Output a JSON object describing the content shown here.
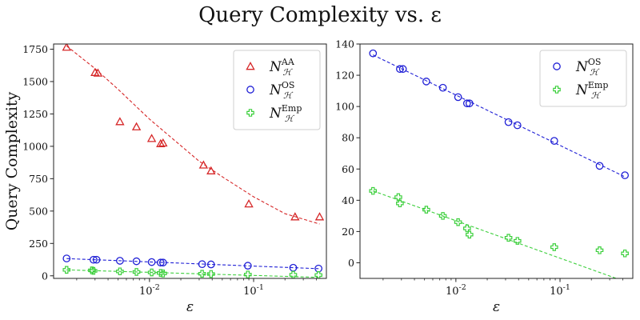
{
  "figure": {
    "title": "Query Complexity vs. ε"
  },
  "chart_data": [
    {
      "type": "scatter",
      "panel": "left",
      "xscale": "log",
      "xlabel": "ε",
      "ylabel": "Query Complexity",
      "xlim": [
        0.0012,
        0.5
      ],
      "ylim": [
        -20,
        1790
      ],
      "xticks": [
        {
          "value": 0.01,
          "label": "10^-2"
        },
        {
          "value": 0.1,
          "label": "10^-1"
        }
      ],
      "yticks": [
        0,
        250,
        500,
        750,
        1000,
        1250,
        1500,
        1750
      ],
      "legend_position": "top-right",
      "series": [
        {
          "name": "N_H^AA",
          "name_base": "N",
          "name_sub": "ℋ",
          "name_sup": "AA",
          "color": "#d62728",
          "marker": "triangle",
          "points": [
            [
              0.0016,
              1765
            ],
            [
              0.003,
              1570
            ],
            [
              0.0032,
              1565
            ],
            [
              0.0052,
              1190
            ],
            [
              0.0075,
              1150
            ],
            [
              0.0105,
              1060
            ],
            [
              0.0128,
              1020
            ],
            [
              0.0135,
              1025
            ],
            [
              0.033,
              855
            ],
            [
              0.039,
              810
            ],
            [
              0.09,
              555
            ],
            [
              0.25,
              455
            ],
            [
              0.43,
              455
            ]
          ],
          "fit": [
            [
              0.0016,
              1775
            ],
            [
              0.003,
              1600
            ],
            [
              0.005,
              1440
            ],
            [
              0.01,
              1210
            ],
            [
              0.03,
              885
            ],
            [
              0.05,
              765
            ],
            [
              0.1,
              610
            ],
            [
              0.2,
              480
            ],
            [
              0.43,
              400
            ]
          ]
        },
        {
          "name": "N_H^OS",
          "name_base": "N",
          "name_sub": "ℋ",
          "name_sup": "OS",
          "color": "#1f1fd6",
          "marker": "circle",
          "points": [
            [
              0.0016,
              134
            ],
            [
              0.0029,
              124
            ],
            [
              0.0031,
              124
            ],
            [
              0.0052,
              116
            ],
            [
              0.0075,
              112
            ],
            [
              0.0105,
              106
            ],
            [
              0.0128,
              102
            ],
            [
              0.0135,
              102
            ],
            [
              0.032,
              90
            ],
            [
              0.039,
              88
            ],
            [
              0.088,
              78
            ],
            [
              0.24,
              62
            ],
            [
              0.42,
              56
            ]
          ],
          "fit": [
            [
              0.0016,
              133
            ],
            [
              0.42,
              55
            ]
          ]
        },
        {
          "name": "N_H^Emp",
          "name_base": "N",
          "name_sub": "ℋ",
          "name_sup": "Emp",
          "color": "#3ccf3c",
          "marker": "plus",
          "points": [
            [
              0.0016,
              46
            ],
            [
              0.0028,
              42
            ],
            [
              0.0029,
              38
            ],
            [
              0.0052,
              34
            ],
            [
              0.0075,
              30
            ],
            [
              0.0105,
              26
            ],
            [
              0.0128,
              22
            ],
            [
              0.0135,
              18
            ],
            [
              0.032,
              16
            ],
            [
              0.039,
              14
            ],
            [
              0.088,
              10
            ],
            [
              0.24,
              8
            ],
            [
              0.42,
              6
            ]
          ],
          "fit": [
            [
              0.0016,
              46
            ],
            [
              0.42,
              -12
            ]
          ]
        }
      ]
    },
    {
      "type": "scatter",
      "panel": "right",
      "xscale": "log",
      "xlabel": "ε",
      "ylabel": "",
      "xlim": [
        0.0012,
        0.5
      ],
      "ylim": [
        -10,
        140
      ],
      "xticks": [
        {
          "value": 0.01,
          "label": "10^-2"
        },
        {
          "value": 0.1,
          "label": "10^-1"
        }
      ],
      "yticks": [
        0,
        20,
        40,
        60,
        80,
        100,
        120,
        140
      ],
      "legend_position": "top-right",
      "series": [
        {
          "name": "N_H^OS",
          "name_base": "N",
          "name_sub": "ℋ",
          "name_sup": "OS",
          "color": "#1f1fd6",
          "marker": "circle",
          "points": [
            [
              0.0016,
              134
            ],
            [
              0.0029,
              124
            ],
            [
              0.0031,
              124
            ],
            [
              0.0052,
              116
            ],
            [
              0.0075,
              112
            ],
            [
              0.0105,
              106
            ],
            [
              0.0128,
              102
            ],
            [
              0.0135,
              102
            ],
            [
              0.032,
              90
            ],
            [
              0.039,
              88
            ],
            [
              0.088,
              78
            ],
            [
              0.24,
              62
            ],
            [
              0.42,
              56
            ]
          ],
          "fit": [
            [
              0.0016,
              133
            ],
            [
              0.42,
              55
            ]
          ]
        },
        {
          "name": "N_H^Emp",
          "name_base": "N",
          "name_sub": "ℋ",
          "name_sup": "Emp",
          "color": "#3ccf3c",
          "marker": "plus",
          "points": [
            [
              0.0016,
              46
            ],
            [
              0.0028,
              42
            ],
            [
              0.0029,
              38
            ],
            [
              0.0052,
              34
            ],
            [
              0.0075,
              30
            ],
            [
              0.0105,
              26
            ],
            [
              0.0128,
              22
            ],
            [
              0.0135,
              18
            ],
            [
              0.032,
              16
            ],
            [
              0.039,
              14
            ],
            [
              0.088,
              10
            ],
            [
              0.24,
              8
            ],
            [
              0.42,
              6
            ]
          ],
          "fit": [
            [
              0.0016,
              46
            ],
            [
              0.42,
              -12
            ]
          ]
        }
      ]
    }
  ]
}
